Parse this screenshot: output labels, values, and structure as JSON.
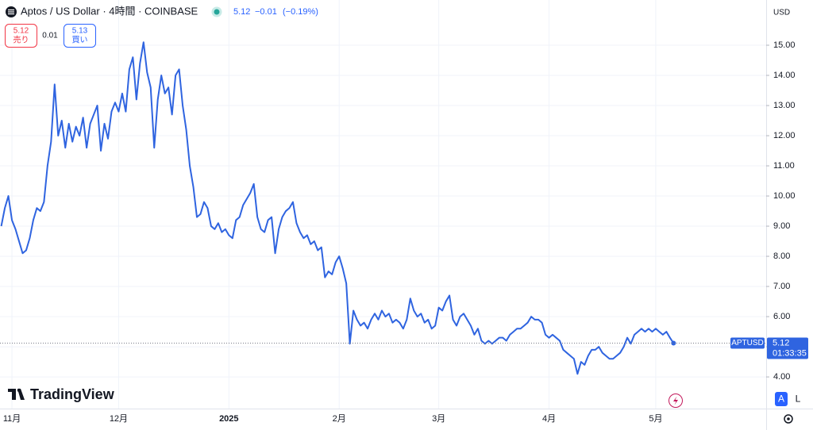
{
  "chart_data": {
    "type": "line",
    "title": "Aptos / US Dollar · 4時間 · COINBASE",
    "currency": "USD",
    "categories": [
      null,
      null,
      null,
      "11月",
      null,
      null,
      null,
      null,
      null,
      null,
      null,
      null,
      null,
      null,
      null,
      null,
      null,
      null,
      null,
      null,
      null,
      null,
      null,
      null,
      null,
      null,
      null,
      null,
      null,
      null,
      null,
      null,
      null,
      "12月",
      null,
      null,
      null,
      null,
      null,
      null,
      null,
      null,
      null,
      null,
      null,
      null,
      null,
      null,
      null,
      null,
      null,
      null,
      null,
      null,
      null,
      null,
      null,
      null,
      null,
      null,
      null,
      null,
      null,
      null,
      "2025",
      null,
      null,
      null,
      null,
      null,
      null,
      null,
      null,
      null,
      null,
      null,
      null,
      null,
      null,
      null,
      null,
      null,
      null,
      null,
      null,
      null,
      null,
      null,
      null,
      null,
      null,
      null,
      null,
      null,
      null,
      "2月",
      null,
      null,
      null,
      null,
      null,
      null,
      null,
      null,
      null,
      null,
      null,
      null,
      null,
      null,
      null,
      null,
      null,
      null,
      null,
      null,
      null,
      null,
      null,
      null,
      null,
      null,
      null,
      "3月",
      null,
      null,
      null,
      null,
      null,
      null,
      null,
      null,
      null,
      null,
      null,
      null,
      null,
      null,
      null,
      null,
      null,
      null,
      null,
      null,
      null,
      null,
      null,
      null,
      null,
      null,
      null,
      null,
      null,
      null,
      "4月",
      null,
      null,
      null,
      null,
      null,
      null,
      null,
      null,
      null,
      null,
      null,
      null,
      null,
      null,
      null,
      null,
      null,
      null,
      null,
      null,
      null,
      null,
      null,
      null,
      null,
      null,
      null,
      null,
      null,
      "5月",
      null,
      null,
      null,
      null,
      null
    ],
    "series": [
      {
        "name": "APTUSD",
        "color": "#2f64e0",
        "values": [
          9.0,
          9.6,
          10.0,
          9.2,
          8.9,
          8.5,
          8.1,
          8.2,
          8.6,
          9.2,
          9.6,
          9.5,
          9.8,
          11.0,
          11.8,
          13.7,
          12.0,
          12.5,
          11.6,
          12.4,
          11.8,
          12.3,
          12.0,
          12.6,
          11.6,
          12.4,
          12.7,
          13.0,
          11.5,
          12.4,
          11.9,
          12.8,
          13.1,
          12.8,
          13.4,
          12.8,
          14.2,
          14.6,
          13.2,
          14.4,
          15.1,
          14.1,
          13.6,
          11.6,
          13.2,
          14.0,
          13.4,
          13.6,
          12.7,
          14.0,
          14.2,
          13.0,
          12.2,
          11.0,
          10.3,
          9.3,
          9.4,
          9.8,
          9.6,
          9.0,
          8.9,
          9.1,
          8.8,
          8.9,
          8.7,
          8.6,
          9.2,
          9.3,
          9.7,
          9.9,
          10.1,
          10.4,
          9.3,
          8.9,
          8.8,
          9.2,
          9.3,
          8.1,
          8.9,
          9.3,
          9.5,
          9.6,
          9.8,
          9.1,
          8.8,
          8.6,
          8.7,
          8.4,
          8.5,
          8.2,
          8.3,
          7.3,
          7.5,
          7.4,
          7.8,
          8.0,
          7.6,
          7.1,
          5.1,
          6.2,
          5.9,
          5.7,
          5.8,
          5.6,
          5.9,
          6.1,
          5.9,
          6.2,
          6.0,
          6.1,
          5.8,
          5.9,
          5.8,
          5.6,
          5.9,
          6.6,
          6.2,
          6.0,
          6.1,
          5.8,
          5.9,
          5.6,
          5.7,
          6.3,
          6.2,
          6.5,
          6.7,
          5.9,
          5.7,
          6.0,
          6.1,
          5.9,
          5.7,
          5.4,
          5.6,
          5.2,
          5.1,
          5.2,
          5.1,
          5.2,
          5.3,
          5.3,
          5.2,
          5.4,
          5.5,
          5.6,
          5.6,
          5.7,
          5.8,
          6.0,
          5.9,
          5.9,
          5.8,
          5.4,
          5.3,
          5.4,
          5.3,
          5.2,
          4.9,
          4.8,
          4.7,
          4.6,
          4.1,
          4.5,
          4.4,
          4.7,
          4.9,
          4.9,
          5.0,
          4.8,
          4.7,
          4.6,
          4.6,
          4.7,
          4.8,
          5.0,
          5.3,
          5.1,
          5.4,
          5.5,
          5.6,
          5.5,
          5.6,
          5.5,
          5.6,
          5.5,
          5.4,
          5.5,
          5.3,
          5.12
        ]
      }
    ],
    "ylim": [
      2.95,
      16.5
    ],
    "yticks": [
      {
        "value": 4,
        "label": "4.00"
      },
      {
        "value": 5,
        "label": "5.00"
      },
      {
        "value": 6,
        "label": "6.00"
      },
      {
        "value": 7,
        "label": "7.00"
      },
      {
        "value": 8,
        "label": "8.00"
      },
      {
        "value": 9,
        "label": "9.00"
      },
      {
        "value": 10,
        "label": "10.00"
      },
      {
        "value": 11,
        "label": "11.00"
      },
      {
        "value": 12,
        "label": "12.00"
      },
      {
        "value": 13,
        "label": "13.00"
      },
      {
        "value": 14,
        "label": "14.00"
      },
      {
        "value": 15,
        "label": "15.00"
      }
    ],
    "grid": true,
    "last_price": 5.12,
    "countdown": "01:33:35",
    "quote": {
      "last": 5.12,
      "change": {
        "value": -0.01,
        "label": "−0.01"
      },
      "change_pct": {
        "value": -0.19,
        "label": "(−0.19%)"
      },
      "sell": 5.12,
      "sell_label": "売り",
      "spread": 0.01,
      "buy": 5.13,
      "buy_label": "買い"
    },
    "brand": "TradingView",
    "buttons": [
      "A",
      "L"
    ]
  }
}
